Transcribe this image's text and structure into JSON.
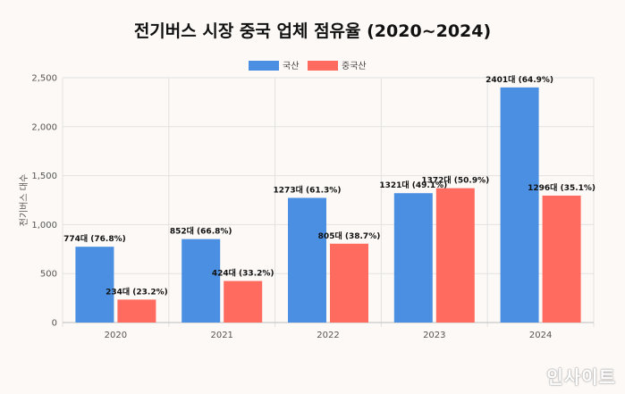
{
  "chart_data": {
    "type": "bar",
    "title": "전기버스 시장 중국 업체 점유율 (2020~2024)",
    "ylabel": "전기버스 대수",
    "xlabel": "",
    "categories": [
      "2020",
      "2021",
      "2022",
      "2023",
      "2024"
    ],
    "ylim": [
      0,
      2500
    ],
    "yticks": [
      "0",
      "500",
      "1,000",
      "1,500",
      "2,000",
      "2,500"
    ],
    "grid": true,
    "legend_position": "top-center",
    "series": [
      {
        "name": "국산",
        "color": "#4a8fe2",
        "values": [
          774,
          852,
          1273,
          1321,
          2401
        ],
        "labels": [
          "774대 (76.8%)",
          "852대 (66.8%)",
          "1273대 (61.3%)",
          "1321대 (49.1%)",
          "2401대 (64.9%)"
        ]
      },
      {
        "name": "중국산",
        "color": "#ff6b5e",
        "values": [
          234,
          424,
          805,
          1372,
          1296
        ],
        "labels": [
          "234대 (23.2%)",
          "424대 (33.2%)",
          "805대 (38.7%)",
          "1372대 (50.9%)",
          "1296대 (35.1%)"
        ]
      }
    ]
  },
  "watermark": "인사이트"
}
